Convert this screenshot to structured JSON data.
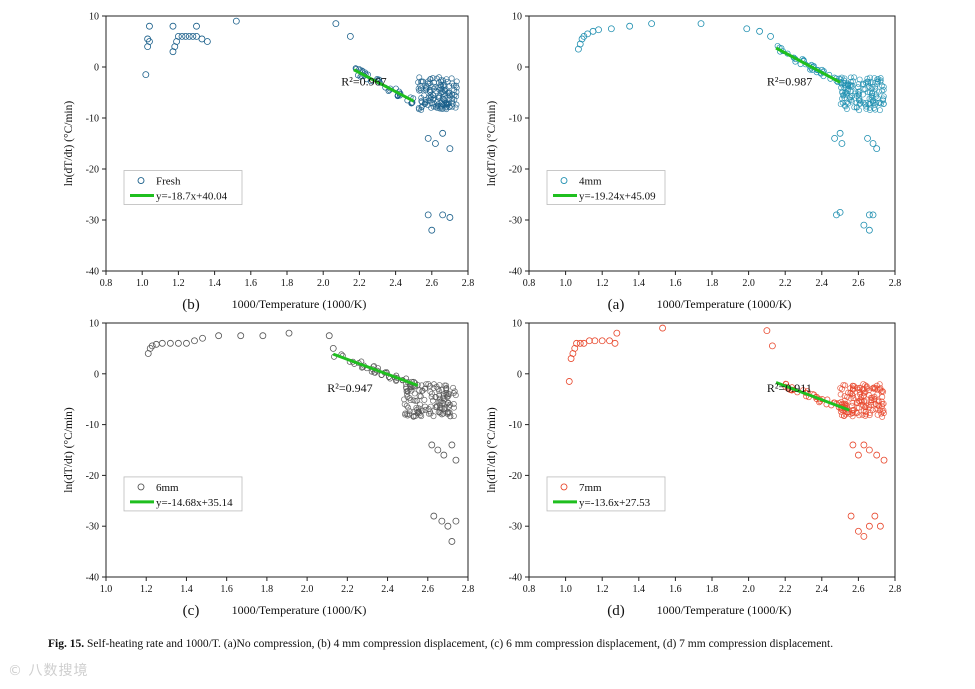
{
  "caption": {
    "label": "Fig. 15.",
    "text": "Self-heating rate and 1000/T. (a)No compression, (b) 4 mm compression displacement, (c) 6 mm compression displacement, (d) 7 mm compression displacement."
  },
  "watermark": "© 八数搜境",
  "chart_data": [
    {
      "type": "scatter",
      "panel_label": "(b)",
      "xlabel": "1000/Temperature (1000/K)",
      "ylabel": "ln(dT/dt) (°C/min)",
      "xlim": [
        0.8,
        2.8
      ],
      "ylim": [
        -40,
        10
      ],
      "xticks": [
        "0.8",
        "1.0",
        "1.2",
        "1.4",
        "1.6",
        "1.8",
        "2.0",
        "2.2",
        "2.4",
        "2.6",
        "2.8"
      ],
      "yticks": [
        "10",
        "0",
        "-10",
        "-20",
        "-30",
        "-40"
      ],
      "r2_label": "R²=0.967",
      "legend": {
        "scatter_label": "Fresh",
        "fit_label": "y=-18.7x+40.04"
      },
      "color": "#1a5f8a",
      "fit": {
        "slope": -18.7,
        "intercept": 40.04,
        "x_range": [
          2.17,
          2.5
        ]
      },
      "series": [
        {
          "name": "Fresh",
          "points": [
            [
              1.02,
              -1.5
            ],
            [
              1.03,
              4
            ],
            [
              1.03,
              5.5
            ],
            [
              1.04,
              8
            ],
            [
              1.04,
              5
            ],
            [
              1.17,
              8
            ],
            [
              1.17,
              3
            ],
            [
              1.18,
              4
            ],
            [
              1.19,
              5
            ],
            [
              1.2,
              6
            ],
            [
              1.22,
              6
            ],
            [
              1.24,
              6
            ],
            [
              1.26,
              6
            ],
            [
              1.28,
              6
            ],
            [
              1.3,
              6
            ],
            [
              1.33,
              5.5
            ],
            [
              1.36,
              5
            ],
            [
              1.3,
              8
            ],
            [
              1.52,
              9
            ],
            [
              2.07,
              8.5
            ],
            [
              2.15,
              6
            ],
            [
              2.58,
              -14
            ],
            [
              2.62,
              -15
            ],
            [
              2.66,
              -13
            ],
            [
              2.7,
              -16
            ],
            [
              2.58,
              -29
            ],
            [
              2.6,
              -32
            ],
            [
              2.66,
              -29
            ],
            [
              2.7,
              -29.5
            ]
          ]
        }
      ]
    },
    {
      "type": "scatter",
      "panel_label": "(a)",
      "xlabel": "1000/Temperature (1000/K)",
      "ylabel": "ln(dT/dt) (°C/min)",
      "xlim": [
        0.8,
        2.8
      ],
      "ylim": [
        -40,
        10
      ],
      "xticks": [
        "0.8",
        "1.0",
        "1.2",
        "1.4",
        "1.6",
        "1.8",
        "2.0",
        "2.2",
        "2.4",
        "2.6",
        "2.8"
      ],
      "yticks": [
        "10",
        "0",
        "-10",
        "-20",
        "-30",
        "-40"
      ],
      "r2_label": "R²=0.987",
      "legend": {
        "scatter_label": "4mm",
        "fit_label": "y=-19.24x+45.09"
      },
      "color": "#1f8fb0",
      "fit": {
        "slope": -19.24,
        "intercept": 45.09,
        "x_range": [
          2.15,
          2.5
        ]
      },
      "series": [
        {
          "name": "4mm",
          "points": [
            [
              1.07,
              3.5
            ],
            [
              1.08,
              4.5
            ],
            [
              1.09,
              5.5
            ],
            [
              1.1,
              6
            ],
            [
              1.12,
              6.5
            ],
            [
              1.15,
              7
            ],
            [
              1.18,
              7.3
            ],
            [
              1.25,
              7.5
            ],
            [
              1.35,
              8
            ],
            [
              1.47,
              8.5
            ],
            [
              1.74,
              8.5
            ],
            [
              1.99,
              7.5
            ],
            [
              2.06,
              7
            ],
            [
              2.12,
              6
            ],
            [
              2.47,
              -14
            ],
            [
              2.5,
              -13
            ],
            [
              2.51,
              -15
            ],
            [
              2.48,
              -29
            ],
            [
              2.5,
              -28.5
            ],
            [
              2.63,
              -31
            ],
            [
              2.66,
              -32
            ],
            [
              2.66,
              -29
            ],
            [
              2.68,
              -29
            ],
            [
              2.65,
              -14
            ],
            [
              2.68,
              -15
            ],
            [
              2.7,
              -16
            ]
          ]
        }
      ]
    },
    {
      "type": "scatter",
      "panel_label": "(c)",
      "xlabel": "1000/Temperature (1000/K)",
      "ylabel": "ln(dT/dt) (°C/min)",
      "xlim": [
        1.0,
        2.8
      ],
      "ylim": [
        -40,
        10
      ],
      "xticks": [
        "1.0",
        "1.2",
        "1.4",
        "1.6",
        "1.8",
        "2.0",
        "2.2",
        "2.4",
        "2.6",
        "2.8"
      ],
      "yticks": [
        "10",
        "0",
        "-10",
        "-20",
        "-30",
        "-40"
      ],
      "r2_label": "R²=0.947",
      "legend": {
        "scatter_label": "6mm",
        "fit_label": "y=-14.68x+35.14"
      },
      "color": "#555555",
      "fit": {
        "slope": -14.68,
        "intercept": 35.14,
        "x_range": [
          2.13,
          2.55
        ]
      },
      "series": [
        {
          "name": "6mm",
          "points": [
            [
              1.21,
              4
            ],
            [
              1.22,
              5
            ],
            [
              1.23,
              5.5
            ],
            [
              1.25,
              5.8
            ],
            [
              1.28,
              6
            ],
            [
              1.32,
              6
            ],
            [
              1.36,
              6
            ],
            [
              1.4,
              6
            ],
            [
              1.44,
              6.5
            ],
            [
              1.48,
              7
            ],
            [
              1.56,
              7.5
            ],
            [
              1.67,
              7.5
            ],
            [
              1.78,
              7.5
            ],
            [
              1.91,
              8
            ],
            [
              2.11,
              7.5
            ],
            [
              2.13,
              5
            ],
            [
              2.62,
              -14
            ],
            [
              2.65,
              -15
            ],
            [
              2.68,
              -16
            ],
            [
              2.72,
              -14
            ],
            [
              2.74,
              -17
            ],
            [
              2.63,
              -28
            ],
            [
              2.67,
              -29
            ],
            [
              2.7,
              -30
            ],
            [
              2.72,
              -33
            ],
            [
              2.74,
              -29
            ]
          ]
        }
      ]
    },
    {
      "type": "scatter",
      "panel_label": "(d)",
      "xlabel": "1000/Temperature (1000/K)",
      "ylabel": "ln(dT/dt) (°C/min)",
      "xlim": [
        0.8,
        2.8
      ],
      "ylim": [
        -40,
        10
      ],
      "xticks": [
        "0.8",
        "1.0",
        "1.2",
        "1.4",
        "1.6",
        "1.8",
        "2.0",
        "2.2",
        "2.4",
        "2.6",
        "2.8"
      ],
      "yticks": [
        "10",
        "0",
        "-10",
        "-20",
        "-30",
        "-40"
      ],
      "r2_label": "R²=0.911",
      "legend": {
        "scatter_label": "7mm",
        "fit_label": "y=-13.6x+27.53"
      },
      "color": "#e8472c",
      "fit": {
        "slope": -13.6,
        "intercept": 27.53,
        "x_range": [
          2.15,
          2.55
        ]
      },
      "series": [
        {
          "name": "7mm",
          "points": [
            [
              1.02,
              -1.5
            ],
            [
              1.03,
              3
            ],
            [
              1.04,
              4
            ],
            [
              1.05,
              5
            ],
            [
              1.06,
              6
            ],
            [
              1.08,
              6
            ],
            [
              1.1,
              6
            ],
            [
              1.13,
              6.5
            ],
            [
              1.16,
              6.5
            ],
            [
              1.2,
              6.5
            ],
            [
              1.24,
              6.5
            ],
            [
              1.27,
              6
            ],
            [
              1.28,
              8
            ],
            [
              1.53,
              9
            ],
            [
              2.1,
              8.5
            ],
            [
              2.13,
              5.5
            ],
            [
              2.57,
              -14
            ],
            [
              2.6,
              -16
            ],
            [
              2.63,
              -14
            ],
            [
              2.66,
              -15
            ],
            [
              2.7,
              -16
            ],
            [
              2.74,
              -17
            ],
            [
              2.56,
              -28
            ],
            [
              2.6,
              -31
            ],
            [
              2.63,
              -32
            ],
            [
              2.66,
              -30
            ],
            [
              2.69,
              -28
            ],
            [
              2.72,
              -30
            ]
          ]
        }
      ]
    }
  ]
}
